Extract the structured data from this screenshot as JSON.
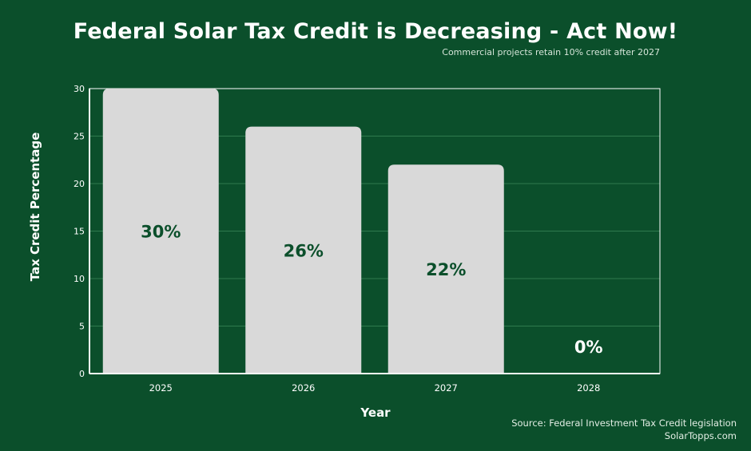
{
  "header": {
    "title": "Federal Solar Tax Credit is Decreasing - Act Now!",
    "subtitle": "Commercial projects retain 10% credit after 2027"
  },
  "footer": {
    "source": "Source: Federal Investment Tax Credit legislation",
    "site": "SolarTopps.com"
  },
  "colors": {
    "background": "#0b4f2b",
    "bar": "#d9d9d9",
    "bar_label_inside": "#0b4f2b",
    "bar_label_outside": "#ffffff",
    "axis": "#ffffff",
    "grid": "#2f7a4e"
  },
  "chart_data": {
    "type": "bar",
    "title": "Federal Solar Tax Credit is Decreasing - Act Now!",
    "subtitle": "Commercial projects retain 10% credit after 2027",
    "xlabel": "Year",
    "ylabel": "Tax Credit Percentage",
    "categories": [
      "2025",
      "2026",
      "2027",
      "2028"
    ],
    "values": [
      30,
      26,
      22,
      0
    ],
    "data_labels": [
      "30%",
      "26%",
      "22%",
      "0%"
    ],
    "ylim": [
      0,
      30
    ],
    "yticks": [
      0,
      5,
      10,
      15,
      20,
      25,
      30
    ],
    "grid": true,
    "legend": "none"
  }
}
